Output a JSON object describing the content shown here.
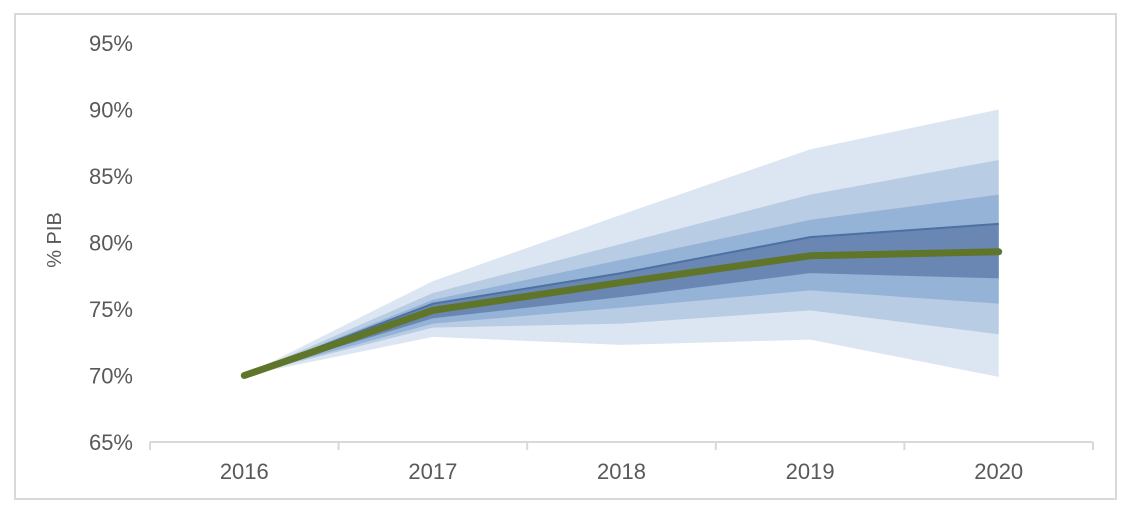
{
  "figure": {
    "background": "#ffffff",
    "border_color": "#d9d9d9",
    "axis_color": "#d9d9d9",
    "text_color": "#595959"
  },
  "chart_data": {
    "type": "area",
    "subtype": "fan-chart",
    "title": "",
    "xlabel": "",
    "ylabel": "% PIB",
    "x": [
      2016,
      2017,
      2018,
      2019,
      2020
    ],
    "x_ticklabels": [
      "2016",
      "2017",
      "2018",
      "2019",
      "2020"
    ],
    "y_ticks": {
      "values": [
        95,
        90,
        85,
        80,
        75,
        70,
        65
      ],
      "labels": [
        "95%",
        "90%",
        "85%",
        "80%",
        "75%",
        "70%",
        "65%"
      ]
    },
    "ylim": [
      65,
      95
    ],
    "grid": false,
    "legend": "none",
    "series": [
      {
        "name": "confidence-band-outer",
        "type": "band",
        "color": "#dce6f2",
        "upper": [
          70.0,
          77.1,
          82.1,
          87.0,
          90.0
        ],
        "lower": [
          70.0,
          72.9,
          72.3,
          72.7,
          69.9
        ]
      },
      {
        "name": "confidence-band-2",
        "type": "band",
        "color": "#b8cce4",
        "upper": [
          70.0,
          76.2,
          79.9,
          83.6,
          86.2
        ],
        "lower": [
          70.0,
          73.6,
          73.9,
          74.9,
          73.1
        ]
      },
      {
        "name": "confidence-band-3",
        "type": "band",
        "color": "#95b3d7",
        "upper": [
          70.0,
          75.7,
          78.7,
          81.7,
          83.6
        ],
        "lower": [
          70.0,
          73.9,
          75.1,
          76.4,
          75.4
        ]
      },
      {
        "name": "confidence-band-inner",
        "type": "band",
        "color": "#6987b2",
        "top_edge_color": "#4d71a2",
        "upper": [
          70.0,
          75.4,
          77.7,
          80.4,
          81.4
        ],
        "lower": [
          70.0,
          74.3,
          75.9,
          77.7,
          77.3
        ]
      },
      {
        "name": "central-projection",
        "type": "line",
        "color": "#5f7529",
        "width": 7,
        "values": [
          70.0,
          74.9,
          77.0,
          79.0,
          79.3
        ]
      }
    ]
  }
}
